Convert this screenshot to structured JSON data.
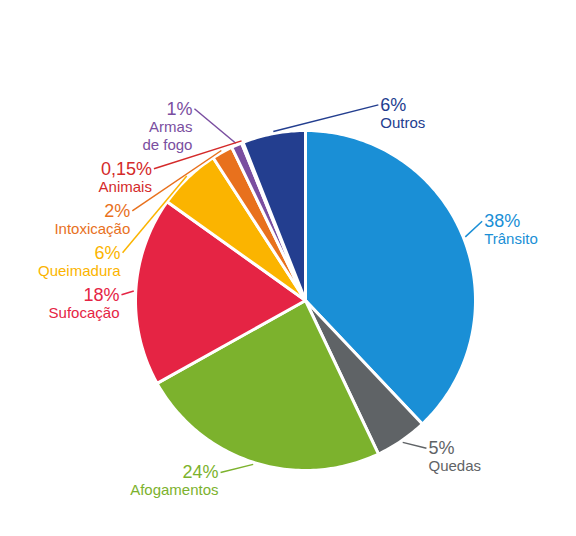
{
  "chart_data": {
    "type": "pie",
    "categories": [
      "Trânsito",
      "Quedas",
      "Afogamentos",
      "Sufocação",
      "Queimadura",
      "Intoxicação",
      "Armas\nde fogo",
      "Animais",
      "Outros"
    ],
    "values": [
      38,
      5,
      24,
      18,
      6,
      2,
      1,
      0.15,
      6
    ],
    "value_labels": [
      "38%",
      "5%",
      "24%",
      "18%",
      "6%",
      "2%",
      "1%",
      "0,15%",
      "6%"
    ],
    "colors": [
      "#1a8fd6",
      "#5f6366",
      "#7cb22d",
      "#e52444",
      "#fbb400",
      "#e8711d",
      "#7a4ea0",
      "#d42a2a",
      "#233e8f"
    ],
    "data_labels": true
  }
}
